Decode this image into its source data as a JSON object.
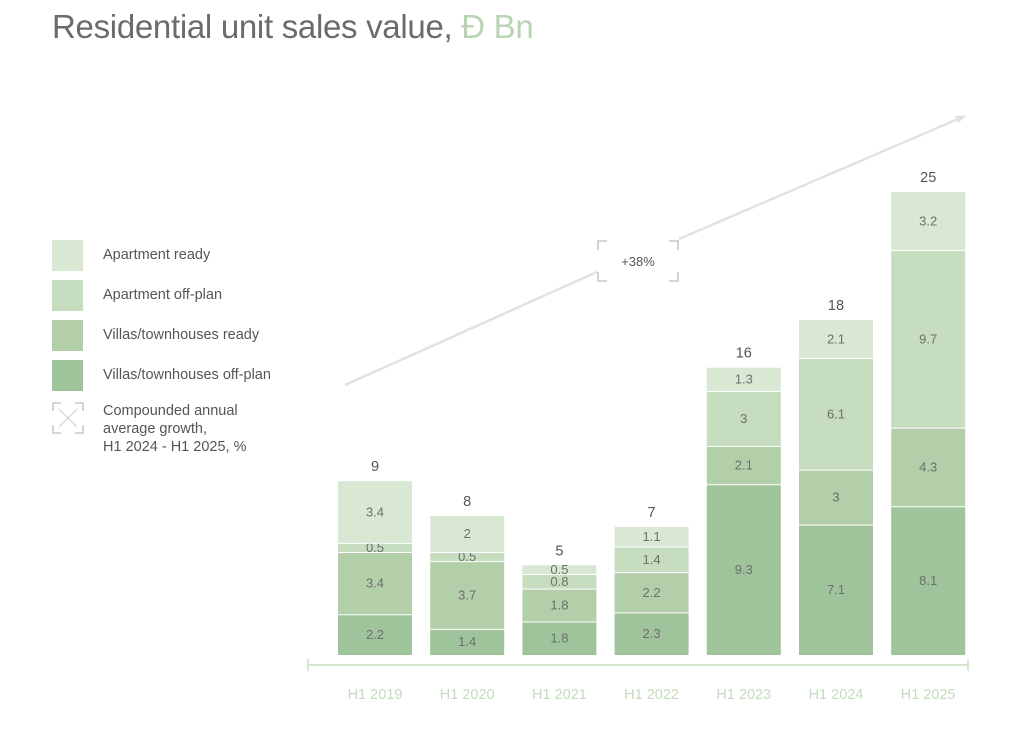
{
  "title": {
    "text": "Residential unit sales value,",
    "unit": "Đ Bn"
  },
  "legend": {
    "items": [
      {
        "label": "Apartment ready",
        "color": "#d8e8d3"
      },
      {
        "label": "Apartment off-plan",
        "color": "#c6ddbf"
      },
      {
        "label": "Villas/townhouses ready",
        "color": "#b2cfaa"
      },
      {
        "label": "Villas/townhouses off-plan",
        "color": "#9fc39a"
      }
    ],
    "growth": {
      "line1": "Compounded annual",
      "line2": "average growth,",
      "line3": "H1 2024 - H1 2025, %"
    }
  },
  "chart_data": {
    "type": "bar",
    "stacked": true,
    "title": "Residential unit sales value, Đ Bn",
    "categories": [
      "H1 2019",
      "H1 2020",
      "H1 2021",
      "H1 2022",
      "H1 2023",
      "H1 2024",
      "H1 2025"
    ],
    "totals": [
      "9",
      "8",
      "5",
      "7",
      "16",
      "18",
      "25"
    ],
    "series": [
      {
        "name": "Villas/townhouses off-plan",
        "color": "#9fc39a",
        "values": [
          2.2,
          1.4,
          1.8,
          2.3,
          9.3,
          7.1,
          8.1
        ]
      },
      {
        "name": "Villas/townhouses ready",
        "color": "#b2cfaa",
        "values": [
          3.4,
          3.7,
          1.8,
          2.2,
          2.1,
          3,
          4.3
        ]
      },
      {
        "name": "Apartment off-plan",
        "color": "#c6ddbf",
        "values": [
          0.5,
          0.5,
          0.8,
          1.4,
          3,
          6.1,
          9.7
        ]
      },
      {
        "name": "Apartment ready",
        "color": "#d8e8d3",
        "values": [
          3.4,
          2,
          0.5,
          1.1,
          1.3,
          2.1,
          3.2
        ]
      }
    ],
    "growth_annotation": "+38%",
    "ylim": [
      0,
      25
    ],
    "grid": false
  }
}
